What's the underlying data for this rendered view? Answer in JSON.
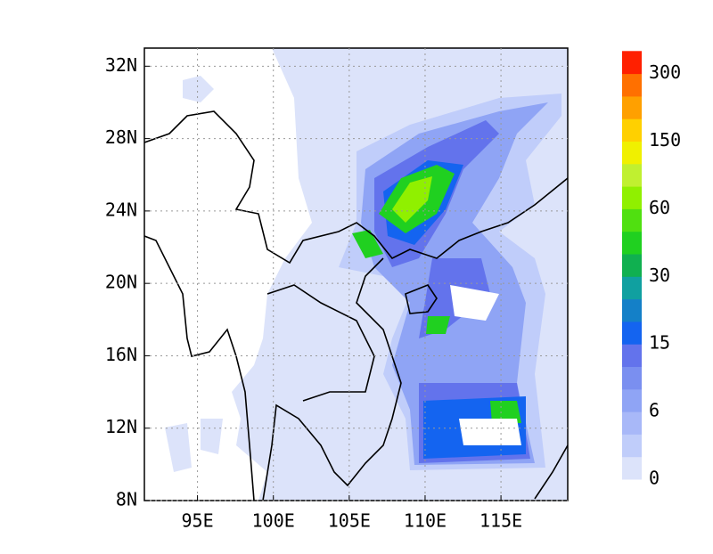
{
  "map": {
    "xlim": [
      91.5,
      119.4
    ],
    "ylim": [
      8,
      33
    ],
    "xticks": [
      {
        "value": 95,
        "label": "95E"
      },
      {
        "value": 100,
        "label": "100E"
      },
      {
        "value": 105,
        "label": "105E"
      },
      {
        "value": 110,
        "label": "110E"
      },
      {
        "value": 115,
        "label": "115E"
      }
    ],
    "yticks": [
      {
        "value": 8,
        "label": "8N"
      },
      {
        "value": 12,
        "label": "12N"
      },
      {
        "value": 16,
        "label": "16N"
      },
      {
        "value": 20,
        "label": "20N"
      },
      {
        "value": 24,
        "label": "24N"
      },
      {
        "value": 28,
        "label": "28N"
      },
      {
        "value": 32,
        "label": "32N"
      }
    ],
    "grid": true,
    "colorbar": {
      "labels": [
        0,
        6,
        15,
        30,
        60,
        150,
        300
      ],
      "colors": [
        "#dce3fa",
        "#c0cdfa",
        "#a8b8f8",
        "#8fa4f5",
        "#7a8ff0",
        "#6373ec",
        "#1464f0",
        "#1480c8",
        "#10a0a0",
        "#10b050",
        "#20d020",
        "#50e010",
        "#90f000",
        "#c0f030",
        "#f0f000",
        "#ffd000",
        "#ffa000",
        "#ff7000",
        "#ff2000"
      ]
    }
  }
}
